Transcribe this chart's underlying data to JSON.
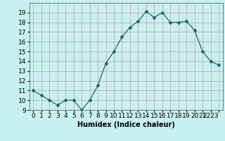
{
  "x": [
    0,
    1,
    2,
    3,
    4,
    5,
    6,
    7,
    8,
    9,
    10,
    11,
    12,
    13,
    14,
    15,
    16,
    17,
    18,
    19,
    20,
    21,
    22,
    23
  ],
  "y": [
    11,
    10.5,
    10,
    9.5,
    10,
    10,
    9,
    10,
    11.5,
    13.8,
    15,
    16.5,
    17.5,
    18.1,
    19.1,
    18.5,
    19.0,
    18.0,
    18.0,
    18.1,
    17.2,
    15.0,
    14.0,
    13.6
  ],
  "line_color": "#1a6b60",
  "marker": "D",
  "marker_size": 2.0,
  "background_color": "#c8f0f0",
  "grid_color": "#c8a0a0",
  "xlabel": "Humidex (Indice chaleur)",
  "ylim": [
    9,
    20
  ],
  "xlim": [
    -0.5,
    23.5
  ],
  "yticks": [
    9,
    10,
    11,
    12,
    13,
    14,
    15,
    16,
    17,
    18,
    19
  ],
  "xlabel_fontsize": 7,
  "tick_fontsize": 6.5
}
